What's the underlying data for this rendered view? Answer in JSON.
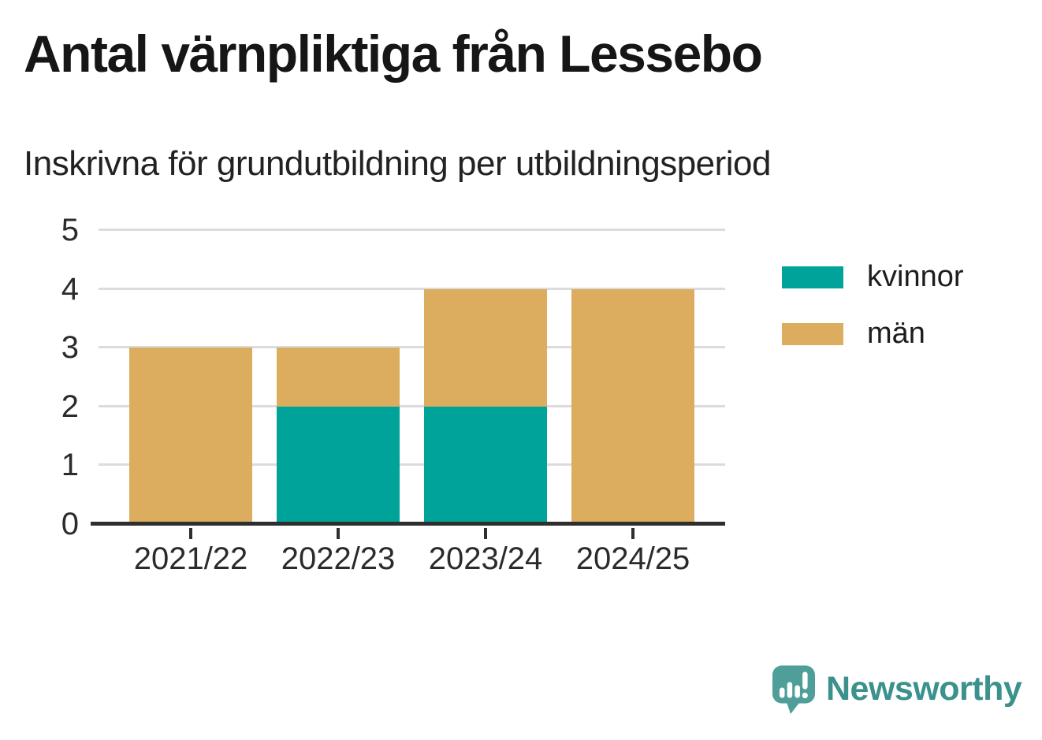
{
  "chart_data": {
    "type": "bar",
    "stacked": true,
    "title": "Antal värnpliktiga från Lessebo",
    "subtitle": "Inskrivna för grundutbildning per utbildningsperiod",
    "categories": [
      "2021/22",
      "2022/23",
      "2023/24",
      "2024/25"
    ],
    "series": [
      {
        "name": "kvinnor",
        "values": [
          0,
          2,
          2,
          0
        ],
        "color": "#00a39a"
      },
      {
        "name": "män",
        "values": [
          3,
          1,
          2,
          4
        ],
        "color": "#dcad5e"
      }
    ],
    "totals": [
      3,
      3,
      4,
      4
    ],
    "xlabel": "",
    "ylabel": "",
    "ylim": [
      0,
      5
    ],
    "yticks": [
      0,
      1,
      2,
      3,
      4,
      5
    ],
    "grid": true,
    "gridline_color": "#dcdcdc",
    "axis_color": "#2e2e2e",
    "legend_position": "right-top"
  },
  "branding": {
    "logo_text": "Newsworthy",
    "logo_text_color": "#3b918c",
    "logo_bubble_color": "#4f9e99"
  }
}
